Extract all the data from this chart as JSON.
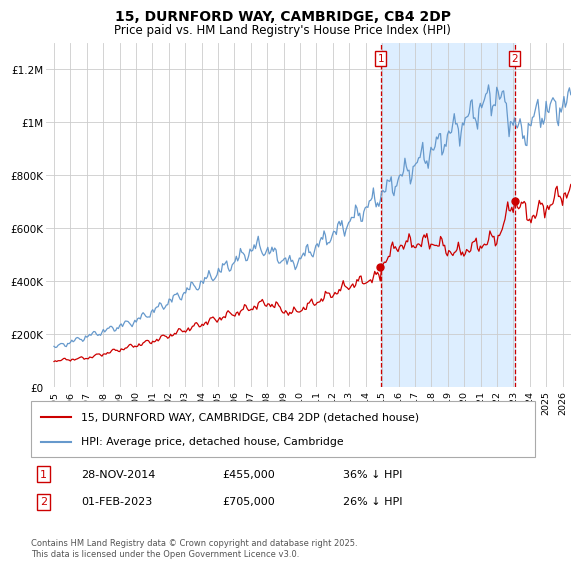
{
  "title": "15, DURNFORD WAY, CAMBRIDGE, CB4 2DP",
  "subtitle": "Price paid vs. HM Land Registry's House Price Index (HPI)",
  "legend_line1": "15, DURNFORD WAY, CAMBRIDGE, CB4 2DP (detached house)",
  "legend_line2": "HPI: Average price, detached house, Cambridge",
  "annotation1_num": "1",
  "annotation1_date": "28-NOV-2014",
  "annotation1_price": "£455,000",
  "annotation1_hpi": "36% ↓ HPI",
  "annotation2_num": "2",
  "annotation2_date": "01-FEB-2023",
  "annotation2_price": "£705,000",
  "annotation2_hpi": "26% ↓ HPI",
  "copyright": "Contains HM Land Registry data © Crown copyright and database right 2025.\nThis data is licensed under the Open Government Licence v3.0.",
  "red_color": "#cc0000",
  "blue_color": "#6699cc",
  "shade_color": "#ddeeff",
  "vline_color": "#cc0000",
  "background_color": "#ffffff",
  "grid_color": "#cccccc",
  "ylim": [
    0,
    1300000
  ],
  "xlim_start": 1994.5,
  "xlim_end": 2026.5,
  "sale1_year": 2014.91,
  "sale2_year": 2023.08,
  "sale1_price": 455000,
  "sale2_price": 705000,
  "yticks": [
    0,
    200000,
    400000,
    600000,
    800000,
    1000000,
    1200000
  ],
  "ylabels": [
    "£0",
    "£200K",
    "£400K",
    "£600K",
    "£800K",
    "£1M",
    "£1.2M"
  ]
}
